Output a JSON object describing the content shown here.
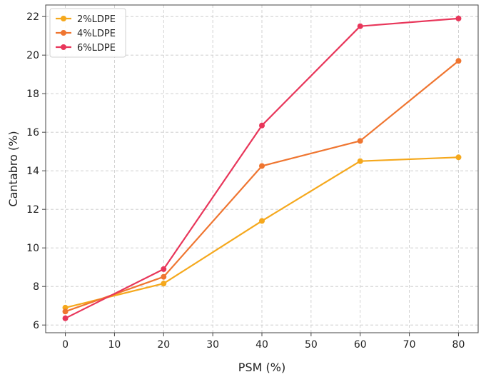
{
  "chart_data": {
    "type": "line",
    "xlabel": "PSM (%)",
    "ylabel": "Cantabro (%)",
    "x": [
      0,
      20,
      40,
      60,
      80
    ],
    "xlim": [
      -4,
      84
    ],
    "ylim": [
      5.6,
      22.6
    ],
    "xticks": [
      0,
      10,
      20,
      30,
      40,
      50,
      60,
      70,
      80
    ],
    "yticks": [
      6,
      8,
      10,
      12,
      14,
      16,
      18,
      20,
      22
    ],
    "grid": true,
    "grid_style": "dashed",
    "legend_position": "top-left",
    "series": [
      {
        "name": "2%LDPE",
        "color": "#f5a81c",
        "values": [
          6.9,
          8.15,
          11.4,
          14.5,
          14.7
        ]
      },
      {
        "name": "4%LDPE",
        "color": "#ef7530",
        "values": [
          6.7,
          8.5,
          14.25,
          15.55,
          19.7
        ]
      },
      {
        "name": "6%LDPE",
        "color": "#e8365a",
        "values": [
          6.35,
          8.9,
          16.35,
          21.5,
          21.9
        ]
      }
    ]
  }
}
